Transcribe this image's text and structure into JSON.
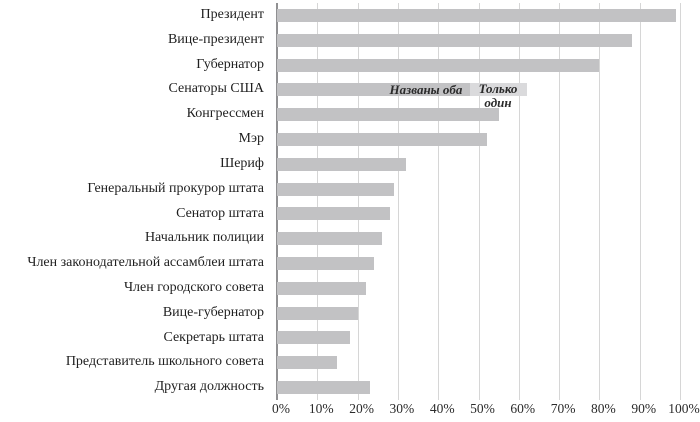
{
  "chart_data": {
    "type": "bar",
    "orientation": "horizontal",
    "title": "",
    "xlabel": "",
    "ylabel": "",
    "categories": [
      "Президент",
      "Вице-президент",
      "Губернатор",
      "Сенаторы США",
      "Конгрессмен",
      "Мэр",
      "Шериф",
      "Генеральный прокурор штата",
      "Сенатор штата",
      "Начальник полиции",
      "Член законодательной ассамблеи штата",
      "Член городского совета",
      "Вице-губернатор",
      "Секретарь штата",
      "Представитель школьного совета",
      "Другая должность"
    ],
    "values": [
      99,
      88,
      80,
      62,
      55,
      52,
      32,
      29,
      28,
      26,
      24,
      22,
      20,
      18,
      15,
      23
    ],
    "stacked_category": "Сенаторы США",
    "stacked_series": [
      {
        "name": "Названы оба",
        "value": 48
      },
      {
        "name": "Только один",
        "value": 14
      }
    ],
    "annotations": {
      "named_both": "Названы оба",
      "only_one": "Только один"
    },
    "x_ticks": [
      "0%",
      "10%",
      "20%",
      "30%",
      "40%",
      "50%",
      "60%",
      "70%",
      "80%",
      "90%",
      "100%"
    ],
    "xlim": [
      0,
      100
    ],
    "grid": true,
    "legend": "none"
  },
  "colors": {
    "bar": "#c2c2c4",
    "bar_light": "#dadadc",
    "gridline": "#d6d6d6",
    "axis_line": "#909092",
    "text": "#1f1f1f"
  }
}
